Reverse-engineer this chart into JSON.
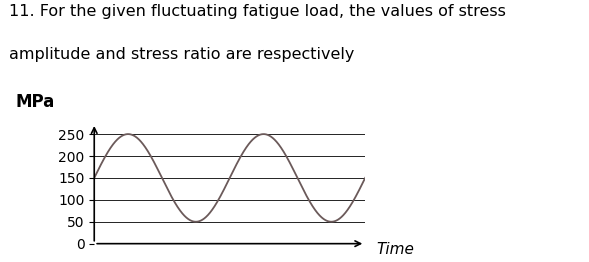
{
  "title_line1": "11. For the given fluctuating fatigue load, the values of stress",
  "title_line2": "amplitude and stress ratio are respectively",
  "ylabel": "MPa",
  "xlabel": "Time",
  "yticks": [
    0,
    50,
    100,
    150,
    200,
    250
  ],
  "ymin": 0,
  "ymax": 275,
  "xmin": 0,
  "xmax": 4.0,
  "sine_mean": 150,
  "sine_amplitude": 100,
  "sine_freq": 0.5,
  "line_color": "#6b5a5a",
  "grid_color": "#000000",
  "background_color": "#ffffff",
  "title_fontsize": 11.5,
  "axis_label_fontsize": 11,
  "tick_fontsize": 10
}
